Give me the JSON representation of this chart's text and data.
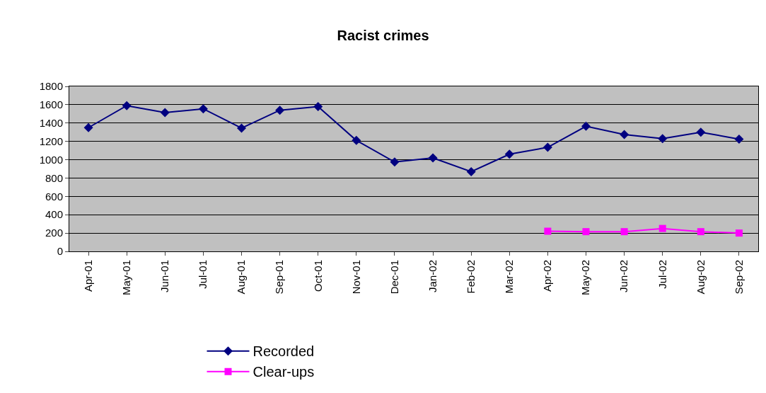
{
  "chart_data": {
    "type": "line",
    "title": "Racist crimes",
    "categories": [
      "Apr-01",
      "May-01",
      "Jun-01",
      "Jul-01",
      "Aug-01",
      "Sep-01",
      "Oct-01",
      "Nov-01",
      "Dec-01",
      "Jan-02",
      "Feb-02",
      "Mar-02",
      "Apr-02",
      "May-02",
      "Jun-02",
      "Jul-02",
      "Aug-02",
      "Sep-02"
    ],
    "series": [
      {
        "name": "Recorded",
        "color": "#000080",
        "marker": "diamond",
        "values": [
          1350,
          1590,
          1515,
          1555,
          1345,
          1540,
          1580,
          1210,
          975,
          1020,
          870,
          1060,
          1135,
          1365,
          1275,
          1230,
          1300,
          1225
        ]
      },
      {
        "name": "Clear-ups",
        "color": "#ff00ff",
        "marker": "square",
        "values": [
          null,
          null,
          null,
          null,
          null,
          null,
          null,
          null,
          null,
          null,
          null,
          null,
          220,
          215,
          215,
          250,
          215,
          200
        ]
      }
    ],
    "ylim": [
      0,
      1800
    ],
    "yticks": [
      0,
      200,
      400,
      600,
      800,
      1000,
      1200,
      1400,
      1600,
      1800
    ],
    "grid": "y",
    "legend": "bottom"
  }
}
